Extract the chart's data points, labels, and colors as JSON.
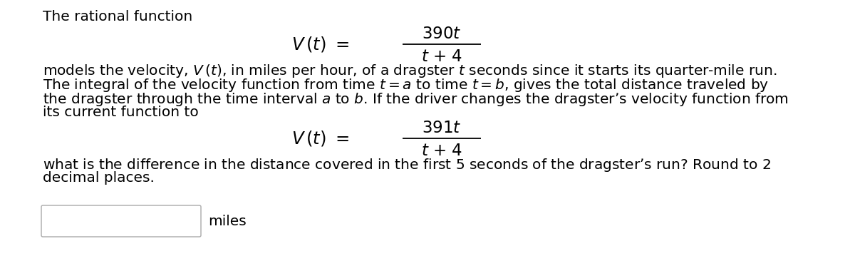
{
  "background_color": "#ffffff",
  "title_line": "The rational function",
  "para1_line1": "models the velocity, $V\\,(t)$, in miles per hour, of a dragster $t$ seconds since it starts its quarter-mile run.",
  "para1_line2": "The integral of the velocity function from time $t = a$ to time $t = b$, gives the total distance traveled by",
  "para1_line3": "the dragster through the time interval $a$ to $b$. If the driver changes the dragster’s velocity function from",
  "para1_line4": "its current function to",
  "para2_line1": "what is the difference in the distance covered in the first $5$ seconds of the dragster’s run? Round to 2",
  "para2_line2": "decimal places.",
  "label_miles": "miles",
  "text_color": "#000000",
  "font_size_body": 14.5,
  "font_size_formula": 16.5,
  "formula1_num": "390$t$",
  "formula1_den": "$t$ + 4",
  "formula2_num": "391$t$",
  "formula2_den": "$t$ + 4"
}
